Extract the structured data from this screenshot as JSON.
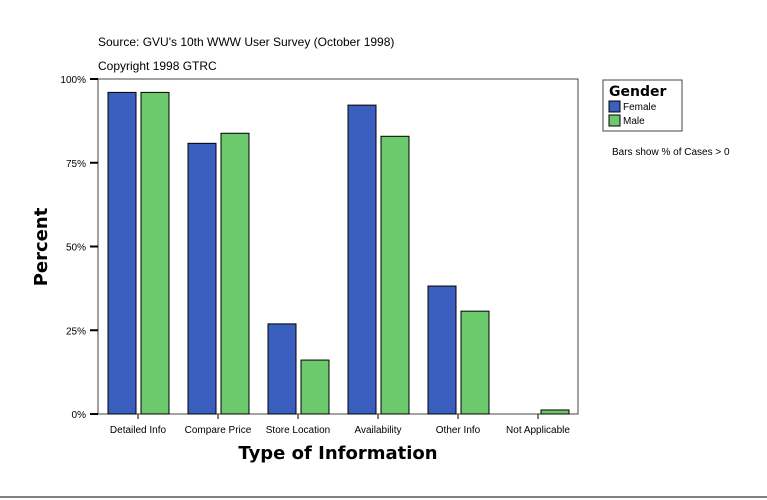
{
  "chart_data": {
    "type": "bar",
    "source": "Source: GVU's 10th WWW User Survey (October 1998)",
    "copyright": "Copyright 1998 GTRC",
    "xlabel": "Type of Information",
    "ylabel": "Percent",
    "ylim": [
      0,
      100
    ],
    "yticks": [
      0,
      25,
      50,
      75,
      100
    ],
    "ytick_labels": [
      "0%",
      "25%",
      "50%",
      "75%",
      "100%"
    ],
    "categories": [
      "Detailed Info",
      "Compare Price",
      "Store Location",
      "Availability",
      "Other Info",
      "Not Applicable"
    ],
    "legend": {
      "title": "Gender",
      "placement": "right"
    },
    "note": "Bars show % of Cases > 0",
    "grid": false,
    "series": [
      {
        "name": "Female",
        "color": "#3a5fbf",
        "values": [
          96.0,
          80.8,
          26.9,
          92.2,
          38.2,
          0
        ]
      },
      {
        "name": "Male",
        "color": "#6cc96c",
        "values": [
          96.0,
          83.8,
          16.1,
          82.9,
          30.7,
          1.2
        ]
      }
    ]
  }
}
